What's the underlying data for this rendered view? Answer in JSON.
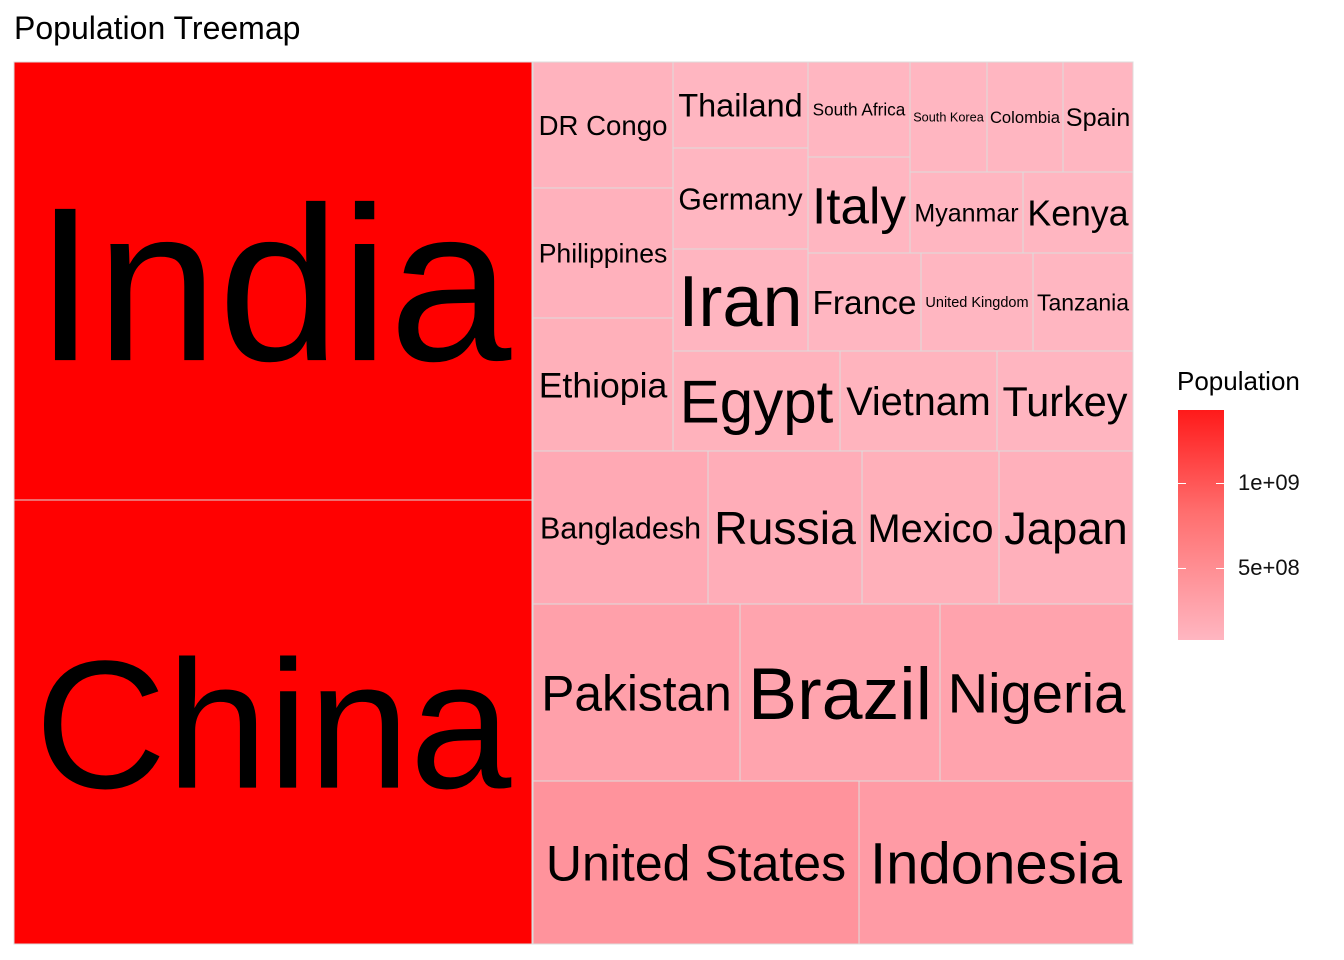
{
  "chart_data": {
    "type": "treemap",
    "title": "Population Treemap",
    "color_low": "#ffb6c1",
    "color_high": "#ff0000",
    "legend": {
      "title": "Population",
      "position": "right",
      "min": 80000000,
      "max": 1430000000,
      "ticks": [
        {
          "value": 1000000000,
          "label": "1e+09"
        },
        {
          "value": 500000000,
          "label": "5e+08"
        }
      ]
    },
    "items": [
      {
        "name": "India",
        "value": 1428000000
      },
      {
        "name": "China",
        "value": 1425000000
      },
      {
        "name": "United States",
        "value": 340000000
      },
      {
        "name": "Indonesia",
        "value": 277000000
      },
      {
        "name": "Pakistan",
        "value": 240000000
      },
      {
        "name": "Nigeria",
        "value": 223000000
      },
      {
        "name": "Brazil",
        "value": 216000000
      },
      {
        "name": "Bangladesh",
        "value": 173000000
      },
      {
        "name": "Russia",
        "value": 144000000
      },
      {
        "name": "Mexico",
        "value": 128000000
      },
      {
        "name": "Ethiopia",
        "value": 126000000
      },
      {
        "name": "Japan",
        "value": 123000000
      },
      {
        "name": "Philippines",
        "value": 117000000
      },
      {
        "name": "Egypt",
        "value": 112000000
      },
      {
        "name": "DR Congo",
        "value": 102000000
      },
      {
        "name": "Vietnam",
        "value": 98000000
      },
      {
        "name": "Iran",
        "value": 89000000
      },
      {
        "name": "Turkey",
        "value": 85000000
      },
      {
        "name": "Germany",
        "value": 83000000
      },
      {
        "name": "Thailand",
        "value": 71000000
      },
      {
        "name": "United Kingdom",
        "value": 67000000
      },
      {
        "name": "Tanzania",
        "value": 67000000
      },
      {
        "name": "France",
        "value": 64000000
      },
      {
        "name": "South Africa",
        "value": 60000000
      },
      {
        "name": "Italy",
        "value": 58000000
      },
      {
        "name": "Kenya",
        "value": 55000000
      },
      {
        "name": "Myanmar",
        "value": 54000000
      },
      {
        "name": "Colombia",
        "value": 52000000
      },
      {
        "name": "South Korea",
        "value": 51000000
      },
      {
        "name": "Spain",
        "value": 47000000
      }
    ]
  }
}
